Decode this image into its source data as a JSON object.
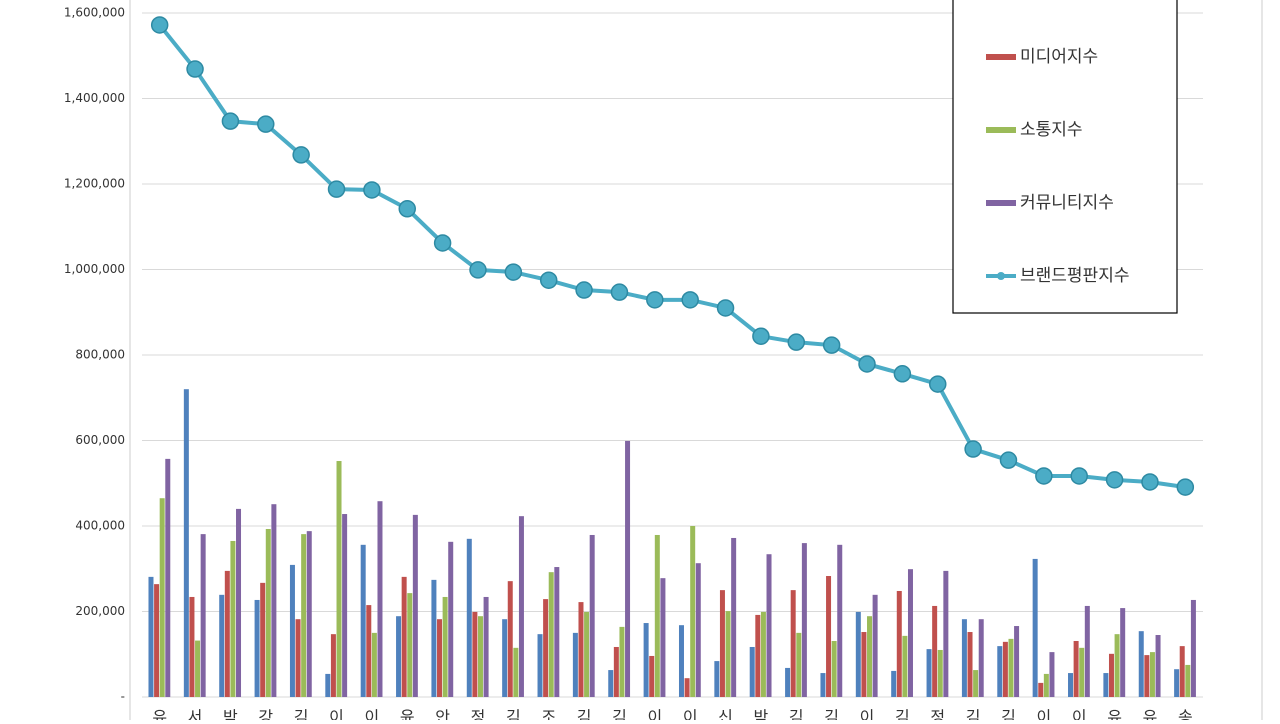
{
  "chart_data": {
    "type": "bar-line",
    "categories": [
      "유",
      "서",
      "박",
      "강",
      "김",
      "이",
      "이",
      "윤",
      "안",
      "정",
      "김",
      "조",
      "김",
      "김",
      "이",
      "이",
      "신",
      "박",
      "김",
      "김",
      "이",
      "김",
      "정",
      "김",
      "김",
      "이",
      "이",
      "유",
      "유",
      "송"
    ],
    "series": [
      {
        "color": "#4f81bd",
        "kind": "bar",
        "values": [
          281000,
          720000,
          239000,
          227000,
          309000,
          54000,
          356000,
          189000,
          274000,
          370000,
          182000,
          147000,
          150000,
          63000,
          173000,
          168000,
          84000,
          117000,
          68000,
          56000,
          199000,
          61000,
          112000,
          182000,
          119000,
          323000,
          56000,
          56000,
          154000,
          65000
        ]
      },
      {
        "name": "미디어지수",
        "color": "#c0504d",
        "kind": "bar",
        "values": [
          264000,
          234000,
          295000,
          267000,
          182000,
          147000,
          215000,
          281000,
          182000,
          199000,
          271000,
          229000,
          222000,
          117000,
          96000,
          44000,
          250000,
          192000,
          250000,
          283000,
          152000,
          248000,
          213000,
          152000,
          129000,
          33000,
          131000,
          101000,
          98000,
          119000
        ]
      },
      {
        "name": "소통지수",
        "color": "#9bbb59",
        "kind": "bar",
        "values": [
          465000,
          132000,
          365000,
          393000,
          381000,
          552000,
          150000,
          243000,
          234000,
          189000,
          115000,
          292000,
          199000,
          164000,
          379000,
          400000,
          201000,
          199000,
          150000,
          131000,
          189000,
          143000,
          110000,
          63000,
          136000,
          54000,
          115000,
          147000,
          105000,
          75000
        ]
      },
      {
        "name": "커뮤니티지수",
        "color": "#8064a2",
        "kind": "bar",
        "values": [
          557000,
          381000,
          440000,
          451000,
          388000,
          428000,
          458000,
          426000,
          363000,
          234000,
          423000,
          304000,
          379000,
          599000,
          278000,
          313000,
          372000,
          334000,
          360000,
          356000,
          239000,
          299000,
          295000,
          182000,
          166000,
          105000,
          213000,
          208000,
          145000,
          227000
        ]
      },
      {
        "name": "브랜드평판지수",
        "color": "#4bacc6",
        "kind": "line",
        "values": [
          1572000,
          1469000,
          1347000,
          1340000,
          1268000,
          1188000,
          1186000,
          1142000,
          1062000,
          999000,
          994000,
          975000,
          952000,
          947000,
          929000,
          929000,
          910000,
          844000,
          830000,
          823000,
          779000,
          756000,
          732000,
          580000,
          554000,
          517000,
          517000,
          508000,
          503000,
          491000
        ]
      }
    ],
    "ylim": [
      0,
      1600000
    ],
    "yticks": [
      {
        "value": 0,
        "label": "-"
      },
      {
        "value": 200000,
        "label": "200,000"
      },
      {
        "value": 400000,
        "label": "400,000"
      },
      {
        "value": 600000,
        "label": "600,000"
      },
      {
        "value": 800000,
        "label": "800,000"
      },
      {
        "value": 1000000,
        "label": "1,000,000"
      },
      {
        "value": 1200000,
        "label": "1,200,000"
      },
      {
        "value": 1400000,
        "label": "1,400,000"
      },
      {
        "value": 1600000,
        "label": "1,600,000"
      }
    ],
    "grid": true
  }
}
